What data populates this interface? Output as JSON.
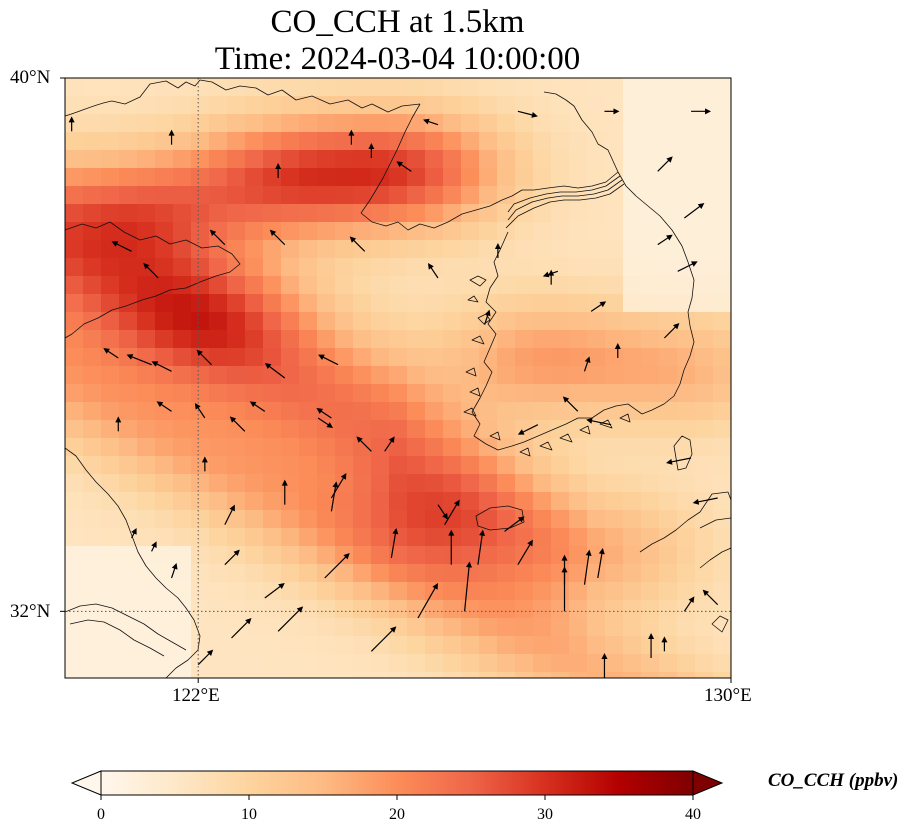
{
  "title": {
    "line1": "CO_CCH at 1.5km",
    "line2": "Time: 2024-03-04 10:00:00"
  },
  "map": {
    "lon_range": [
      120,
      130
    ],
    "lat_range": [
      31,
      40
    ],
    "lat_ticks": [
      {
        "value": 40,
        "label": "40°N"
      },
      {
        "value": 32,
        "label": "32°N"
      }
    ],
    "lon_ticks": [
      {
        "value": 122,
        "label": "122°E"
      },
      {
        "value": 130,
        "label": "130°E"
      }
    ],
    "gridlines": {
      "lons": [
        122
      ],
      "lats": [
        32
      ],
      "style": "dotted"
    }
  },
  "field": {
    "variable": "CO_CCH",
    "units": "ppbv",
    "description_colormap": "OrRd",
    "plumes": [
      {
        "lon": 123.3,
        "lat": 38.5,
        "value": 40
      },
      {
        "lon": 125.2,
        "lat": 38.6,
        "value": 42
      },
      {
        "lon": 121.2,
        "lat": 38.0,
        "value": 32
      },
      {
        "lon": 122.2,
        "lat": 36.5,
        "value": 22
      },
      {
        "lon": 125.8,
        "lat": 33.4,
        "value": 22
      },
      {
        "lon": 128.0,
        "lat": 32.9,
        "value": 22
      },
      {
        "lon": 127.1,
        "lat": 35.8,
        "value": 25
      },
      {
        "lon": 129.3,
        "lat": 35.6,
        "value": 20
      }
    ]
  },
  "colorbar": {
    "title": "CO_CCH (ppbv)",
    "min": 0,
    "max": 40,
    "ticks": [
      0,
      10,
      20,
      30,
      40
    ],
    "extend": "both"
  },
  "colors": {
    "stops": [
      "#fff7ec",
      "#fee8c8",
      "#fdd49e",
      "#fdbb84",
      "#fc8d59",
      "#ef6548",
      "#d7301f",
      "#b30000",
      "#7f0000"
    ]
  },
  "winds": [
    {
      "lon": 122.0,
      "lat": 31.2,
      "u": 0.3,
      "v": 0.3
    },
    {
      "lon": 122.5,
      "lat": 31.6,
      "u": 0.4,
      "v": 0.4
    },
    {
      "lon": 123.2,
      "lat": 31.7,
      "u": 0.5,
      "v": 0.5
    },
    {
      "lon": 124.6,
      "lat": 31.4,
      "u": 0.5,
      "v": 0.5
    },
    {
      "lon": 125.3,
      "lat": 31.9,
      "u": 0.4,
      "v": 0.7
    },
    {
      "lon": 126.0,
      "lat": 32.0,
      "u": 0.1,
      "v": 1.0
    },
    {
      "lon": 127.5,
      "lat": 32.0,
      "u": 0.0,
      "v": 0.9
    },
    {
      "lon": 128.1,
      "lat": 31.0,
      "u": 0.0,
      "v": 0.5
    },
    {
      "lon": 128.8,
      "lat": 31.3,
      "u": 0.0,
      "v": 0.5
    },
    {
      "lon": 129.3,
      "lat": 32.0,
      "u": 0.2,
      "v": 0.3
    },
    {
      "lon": 121.6,
      "lat": 32.5,
      "u": 0.1,
      "v": 0.3
    },
    {
      "lon": 122.4,
      "lat": 32.7,
      "u": 0.3,
      "v": 0.3
    },
    {
      "lon": 123.0,
      "lat": 32.2,
      "u": 0.4,
      "v": 0.3
    },
    {
      "lon": 123.9,
      "lat": 32.5,
      "u": 0.5,
      "v": 0.5
    },
    {
      "lon": 124.9,
      "lat": 32.8,
      "u": 0.1,
      "v": 0.6
    },
    {
      "lon": 125.8,
      "lat": 32.7,
      "u": 0.0,
      "v": 0.7
    },
    {
      "lon": 126.2,
      "lat": 32.7,
      "u": 0.1,
      "v": 0.7
    },
    {
      "lon": 126.8,
      "lat": 32.7,
      "u": 0.3,
      "v": 0.5
    },
    {
      "lon": 127.5,
      "lat": 32.4,
      "u": 0.0,
      "v": 0.6
    },
    {
      "lon": 127.8,
      "lat": 32.4,
      "u": 0.1,
      "v": 0.7
    },
    {
      "lon": 128.0,
      "lat": 32.5,
      "u": 0.1,
      "v": 0.6
    },
    {
      "lon": 121.0,
      "lat": 33.1,
      "u": 0.1,
      "v": 0.2
    },
    {
      "lon": 121.3,
      "lat": 32.9,
      "u": 0.1,
      "v": 0.2
    },
    {
      "lon": 122.4,
      "lat": 33.3,
      "u": 0.2,
      "v": 0.4
    },
    {
      "lon": 123.3,
      "lat": 33.6,
      "u": 0.0,
      "v": 0.5
    },
    {
      "lon": 124.0,
      "lat": 33.5,
      "u": 0.1,
      "v": 0.6
    },
    {
      "lon": 124.0,
      "lat": 33.7,
      "u": 0.3,
      "v": 0.5
    },
    {
      "lon": 125.7,
      "lat": 33.3,
      "u": 0.3,
      "v": 0.5
    },
    {
      "lon": 126.6,
      "lat": 33.2,
      "u": 0.4,
      "v": 0.3
    },
    {
      "lon": 122.1,
      "lat": 34.1,
      "u": 0.0,
      "v": 0.3
    },
    {
      "lon": 123.8,
      "lat": 34.9,
      "u": 0.3,
      "v": -0.2
    },
    {
      "lon": 124.8,
      "lat": 34.4,
      "u": 0.2,
      "v": 0.3
    },
    {
      "lon": 125.6,
      "lat": 33.6,
      "u": 0.2,
      "v": -0.3
    },
    {
      "lon": 127.1,
      "lat": 34.8,
      "u": -0.4,
      "v": -0.2
    },
    {
      "lon": 127.7,
      "lat": 35.0,
      "u": -0.3,
      "v": 0.3
    },
    {
      "lon": 128.2,
      "lat": 34.8,
      "u": -0.5,
      "v": 0.1
    },
    {
      "lon": 129.4,
      "lat": 34.3,
      "u": -0.5,
      "v": -0.1
    },
    {
      "lon": 129.8,
      "lat": 33.7,
      "u": -0.5,
      "v": -0.1
    },
    {
      "lon": 120.8,
      "lat": 34.7,
      "u": 0.0,
      "v": 0.3
    },
    {
      "lon": 121.6,
      "lat": 35.0,
      "u": -0.3,
      "v": 0.2
    },
    {
      "lon": 122.1,
      "lat": 34.9,
      "u": -0.2,
      "v": 0.3
    },
    {
      "lon": 122.7,
      "lat": 34.7,
      "u": -0.3,
      "v": 0.3
    },
    {
      "lon": 123.0,
      "lat": 35.0,
      "u": -0.3,
      "v": 0.2
    },
    {
      "lon": 124.0,
      "lat": 34.9,
      "u": -0.3,
      "v": 0.2
    },
    {
      "lon": 124.6,
      "lat": 34.4,
      "u": -0.3,
      "v": 0.3
    },
    {
      "lon": 120.8,
      "lat": 35.8,
      "u": -0.3,
      "v": 0.2
    },
    {
      "lon": 121.6,
      "lat": 35.6,
      "u": -0.4,
      "v": 0.2
    },
    {
      "lon": 122.2,
      "lat": 35.7,
      "u": -0.3,
      "v": 0.3
    },
    {
      "lon": 123.3,
      "lat": 35.5,
      "u": -0.4,
      "v": 0.3
    },
    {
      "lon": 124.1,
      "lat": 35.7,
      "u": -0.4,
      "v": 0.2
    },
    {
      "lon": 121.3,
      "lat": 35.7,
      "u": -0.5,
      "v": 0.2
    },
    {
      "lon": 124.5,
      "lat": 37.4,
      "u": -0.3,
      "v": 0.3
    },
    {
      "lon": 125.6,
      "lat": 37.0,
      "u": -0.2,
      "v": 0.3
    },
    {
      "lon": 126.5,
      "lat": 37.3,
      "u": 0.0,
      "v": 0.3
    },
    {
      "lon": 127.4,
      "lat": 37.1,
      "u": -0.3,
      "v": -0.1
    },
    {
      "lon": 127.9,
      "lat": 36.5,
      "u": 0.3,
      "v": 0.2
    },
    {
      "lon": 128.9,
      "lat": 37.5,
      "u": 0.3,
      "v": 0.2
    },
    {
      "lon": 129.3,
      "lat": 37.9,
      "u": 0.4,
      "v": 0.3
    },
    {
      "lon": 123.3,
      "lat": 37.5,
      "u": -0.3,
      "v": 0.3
    },
    {
      "lon": 121.0,
      "lat": 37.4,
      "u": -0.4,
      "v": 0.2
    },
    {
      "lon": 121.4,
      "lat": 37.0,
      "u": -0.3,
      "v": 0.3
    },
    {
      "lon": 122.4,
      "lat": 37.5,
      "u": -0.3,
      "v": 0.3
    },
    {
      "lon": 125.2,
      "lat": 38.6,
      "u": -0.3,
      "v": 0.2
    },
    {
      "lon": 123.2,
      "lat": 38.5,
      "u": 0.0,
      "v": 0.3
    },
    {
      "lon": 124.3,
      "lat": 39.0,
      "u": 0.0,
      "v": 0.3
    },
    {
      "lon": 124.6,
      "lat": 38.8,
      "u": 0.0,
      "v": 0.3
    },
    {
      "lon": 125.6,
      "lat": 39.3,
      "u": -0.3,
      "v": 0.1
    },
    {
      "lon": 126.8,
      "lat": 39.5,
      "u": 0.4,
      "v": -0.1
    },
    {
      "lon": 128.1,
      "lat": 39.5,
      "u": 0.3,
      "v": 0.0
    },
    {
      "lon": 129.4,
      "lat": 39.5,
      "u": 0.4,
      "v": 0.0
    },
    {
      "lon": 128.9,
      "lat": 38.6,
      "u": 0.3,
      "v": 0.3
    },
    {
      "lon": 129.2,
      "lat": 37.1,
      "u": 0.4,
      "v": 0.2
    },
    {
      "lon": 129.0,
      "lat": 36.1,
      "u": 0.3,
      "v": 0.3
    },
    {
      "lon": 126.3,
      "lat": 36.3,
      "u": 0.1,
      "v": 0.3
    },
    {
      "lon": 127.8,
      "lat": 35.6,
      "u": 0.1,
      "v": 0.3
    },
    {
      "lon": 128.3,
      "lat": 35.8,
      "u": 0.0,
      "v": 0.3
    },
    {
      "lon": 127.3,
      "lat": 36.9,
      "u": 0.0,
      "v": 0.3
    },
    {
      "lon": 121.6,
      "lat": 39.0,
      "u": 0.0,
      "v": 0.3
    },
    {
      "lon": 120.1,
      "lat": 39.2,
      "u": 0.0,
      "v": 0.3
    },
    {
      "lon": 129.0,
      "lat": 31.4,
      "u": 0.0,
      "v": 0.3
    },
    {
      "lon": 129.8,
      "lat": 32.1,
      "u": -0.3,
      "v": 0.3
    }
  ]
}
